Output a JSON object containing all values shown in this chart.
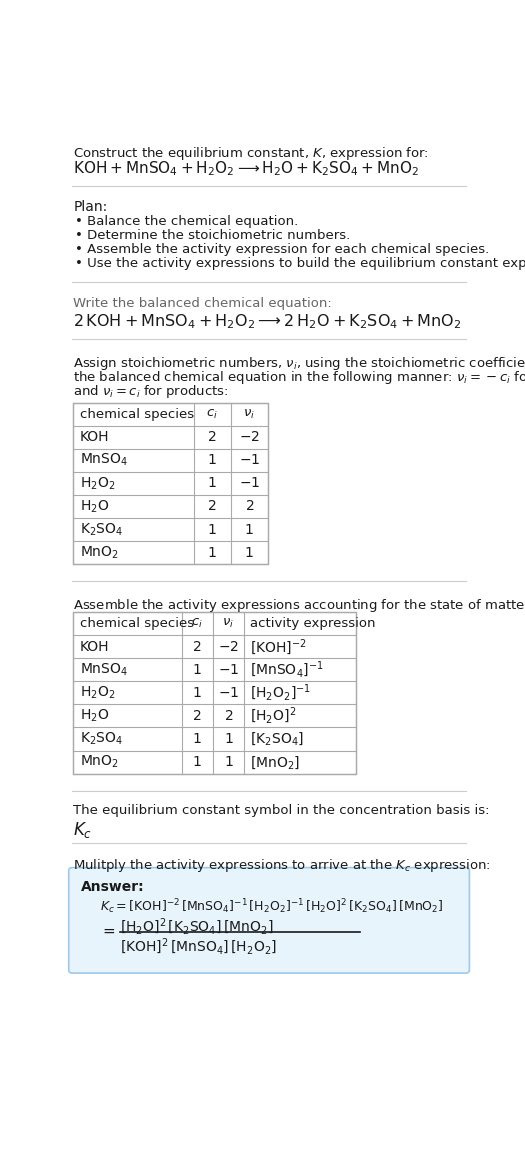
{
  "bg_color": "#ffffff",
  "text_color": "#1a1a1a",
  "gray_text": "#666666",
  "title_line1": "Construct the equilibrium constant, $K$, expression for:",
  "title_line2": "$\\mathrm{KOH + MnSO_4 + H_2O_2 \\longrightarrow H_2O + K_2SO_4 + MnO_2}$",
  "plan_header": "Plan:",
  "plan_items": [
    "Balance the chemical equation.",
    "Determine the stoichiometric numbers.",
    "Assemble the activity expression for each chemical species.",
    "Use the activity expressions to build the equilibrium constant expression."
  ],
  "balanced_header": "Write the balanced chemical equation:",
  "balanced_eq": "$\\mathrm{2\\,KOH + MnSO_4 + H_2O_2 \\longrightarrow 2\\,H_2O + K_2SO_4 + MnO_2}$",
  "stoich_lines": [
    "Assign stoichiometric numbers, $\\nu_i$, using the stoichiometric coefficients, $c_i$, from",
    "the balanced chemical equation in the following manner: $\\nu_i = -c_i$ for reactants",
    "and $\\nu_i = c_i$ for products:"
  ],
  "table1_headers": [
    "chemical species",
    "$c_i$",
    "$\\nu_i$"
  ],
  "table1_rows": [
    [
      "KOH",
      "2",
      "$-2$"
    ],
    [
      "$\\mathrm{MnSO_4}$",
      "1",
      "$-1$"
    ],
    [
      "$\\mathrm{H_2O_2}$",
      "1",
      "$-1$"
    ],
    [
      "$\\mathrm{H_2O}$",
      "2",
      "$2$"
    ],
    [
      "$\\mathrm{K_2SO_4}$",
      "1",
      "$1$"
    ],
    [
      "$\\mathrm{MnO_2}$",
      "1",
      "$1$"
    ]
  ],
  "activity_header": "Assemble the activity expressions accounting for the state of matter and $\\nu_i$:",
  "table2_headers": [
    "chemical species",
    "$c_i$",
    "$\\nu_i$",
    "activity expression"
  ],
  "table2_rows": [
    [
      "KOH",
      "2",
      "$-2$",
      "$[\\mathrm{KOH}]^{-2}$"
    ],
    [
      "$\\mathrm{MnSO_4}$",
      "1",
      "$-1$",
      "$[\\mathrm{MnSO_4}]^{-1}$"
    ],
    [
      "$\\mathrm{H_2O_2}$",
      "1",
      "$-1$",
      "$[\\mathrm{H_2O_2}]^{-1}$"
    ],
    [
      "$\\mathrm{H_2O}$",
      "2",
      "$2$",
      "$[\\mathrm{H_2O}]^{2}$"
    ],
    [
      "$\\mathrm{K_2SO_4}$",
      "1",
      "$1$",
      "$[\\mathrm{K_2SO_4}]$"
    ],
    [
      "$\\mathrm{MnO_2}$",
      "1",
      "$1$",
      "$[\\mathrm{MnO_2}]$"
    ]
  ],
  "kc_header": "The equilibrium constant symbol in the concentration basis is:",
  "kc_symbol": "$K_c$",
  "multiply_header": "Mulitply the activity expressions to arrive at the $K_c$ expression:",
  "answer_label": "Answer:",
  "answer_line1": "$K_c = [\\mathrm{KOH}]^{-2}\\,[\\mathrm{MnSO_4}]^{-1}\\,[\\mathrm{H_2O_2}]^{-1}\\,[\\mathrm{H_2O}]^{2}\\,[\\mathrm{K_2SO_4}]\\,[\\mathrm{MnO_2}]$",
  "answer_num": "$[\\mathrm{H_2O}]^{2}\\,[\\mathrm{K_2SO_4}]\\,[\\mathrm{MnO_2}]$",
  "answer_den": "$[\\mathrm{KOH}]^{2}\\,[\\mathrm{MnSO_4}]\\,[\\mathrm{H_2O_2}]$",
  "answer_box_color": "#e8f4fc",
  "answer_box_border": "#a0c8e8",
  "table_border_color": "#aaaaaa",
  "table_header_bg": "#ffffff"
}
